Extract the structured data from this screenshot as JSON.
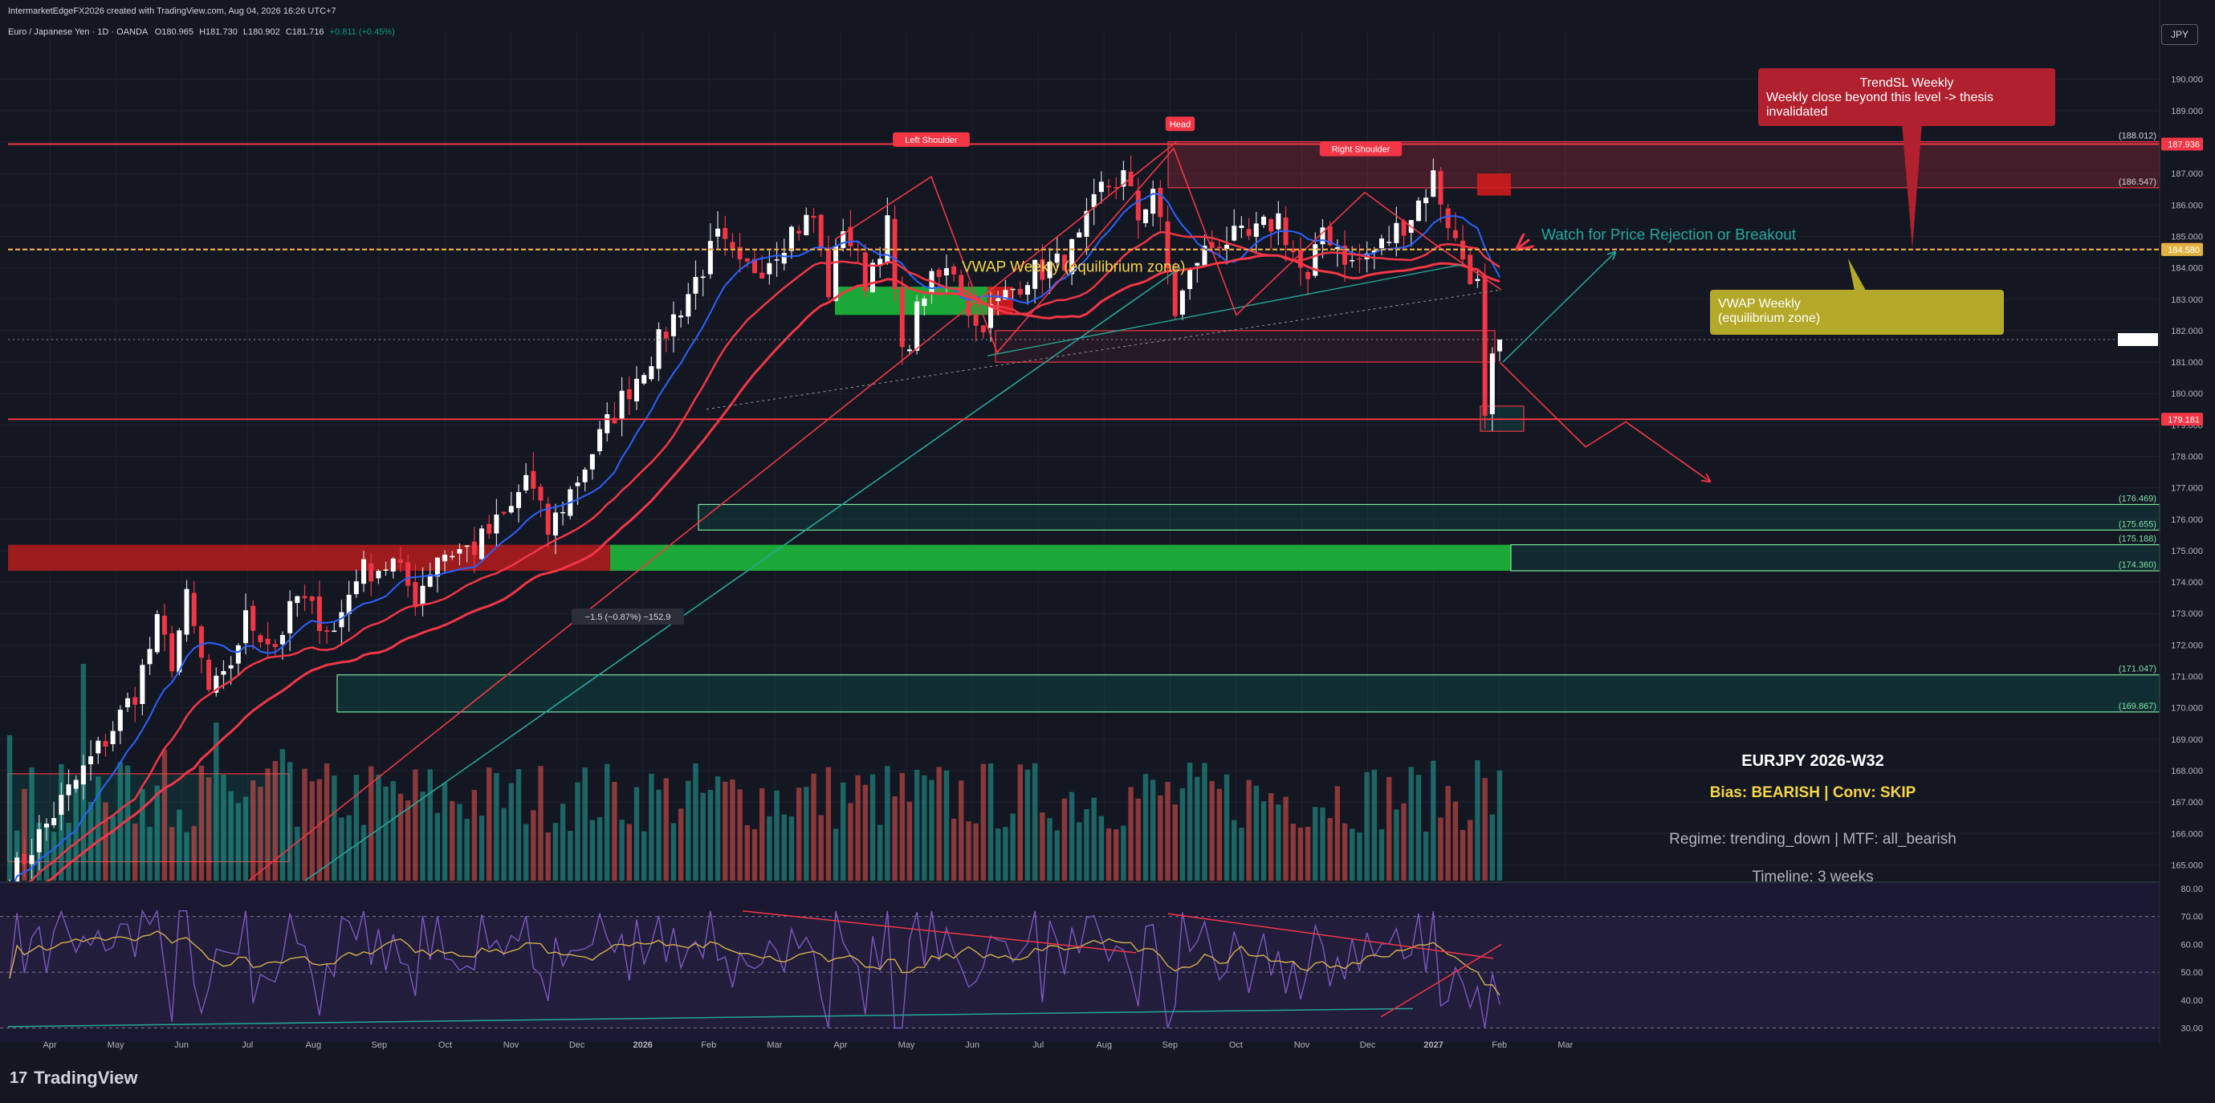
{
  "header": {
    "creator_line": "IntermarketEdgeFX2026 created with TradingView.com, Aug 04, 2026 16:26 UTC+7",
    "symbol": "Euro / Japanese Yen · 1D · OANDA",
    "ohlc": {
      "o": "O180.965",
      "h": "H181.730",
      "l": "L180.902",
      "c": "C181.716",
      "chg": "+0.811 (+0.45%)"
    }
  },
  "currency_button": "JPY",
  "brand": "TradingView",
  "colors": {
    "bg": "#131722",
    "red": "#f23645",
    "green": "#089981",
    "teal": "#26a69a",
    "blue": "#2962ff",
    "yellow": "#d4c23a"
  },
  "chart_data": [
    {
      "type": "candlestick",
      "title": "Euro / Japanese Yen · 1D · OANDA",
      "x_ticks": [
        "Apr",
        "May",
        "Jun",
        "Jul",
        "Aug",
        "Sep",
        "Oct",
        "Nov",
        "Dec",
        "2026",
        "Feb",
        "Mar",
        "Apr",
        "May",
        "Jun",
        "Jul",
        "Aug",
        "Sep",
        "Oct",
        "Nov",
        "Dec",
        "2027",
        "Feb",
        "Mar"
      ],
      "y_ticks": [
        "190.000",
        "189.000",
        "188.000",
        "187.000",
        "186.000",
        "185.000",
        "184.000",
        "183.000",
        "182.000",
        "181.000",
        "180.000",
        "179.000",
        "178.000",
        "177.000",
        "176.000",
        "175.000",
        "174.000",
        "173.000",
        "172.000",
        "171.000",
        "170.000",
        "169.000",
        "168.000",
        "167.000",
        "166.000",
        "165.000"
      ],
      "ylim": [
        164.5,
        191.5
      ],
      "price_path": [
        [
          0,
          164.5
        ],
        [
          7,
          167
        ],
        [
          13,
          169
        ],
        [
          17,
          170.5
        ],
        [
          20,
          172.6
        ],
        [
          22,
          171.5
        ],
        [
          24,
          173.4
        ],
        [
          27,
          170.5
        ],
        [
          29,
          170.8
        ],
        [
          32,
          172.8
        ],
        [
          36,
          172.0
        ],
        [
          39,
          173.5
        ],
        [
          44,
          172.4
        ],
        [
          47,
          174.3
        ],
        [
          52,
          174.6
        ],
        [
          55,
          173.5
        ],
        [
          58,
          174.9
        ],
        [
          63,
          175.1
        ],
        [
          68,
          176.3
        ],
        [
          70,
          177.4
        ],
        [
          73,
          175.6
        ],
        [
          77,
          177.3
        ],
        [
          80,
          178.6
        ],
        [
          84,
          180.2
        ],
        [
          88,
          181.6
        ],
        [
          92,
          183.2
        ],
        [
          96,
          184.9
        ],
        [
          99,
          183.9
        ],
        [
          102,
          184.1
        ],
        [
          106,
          185.2
        ],
        [
          109,
          185.6
        ],
        [
          111,
          183.3
        ],
        [
          113,
          185.4
        ],
        [
          116,
          183.6
        ],
        [
          119,
          185.3
        ],
        [
          121,
          181.1
        ],
        [
          124,
          183.3
        ],
        [
          128,
          184.0
        ],
        [
          131,
          182.1
        ],
        [
          135,
          183.1
        ],
        [
          138,
          183.8
        ],
        [
          142,
          184.1
        ],
        [
          145,
          184.8
        ],
        [
          148,
          186.5
        ],
        [
          151,
          186.9
        ],
        [
          153,
          185.6
        ],
        [
          155,
          186.6
        ],
        [
          158,
          182.6
        ],
        [
          161,
          184.3
        ],
        [
          164,
          184.9
        ],
        [
          168,
          184.9
        ],
        [
          172,
          185.6
        ],
        [
          176,
          183.4
        ],
        [
          178,
          185.3
        ],
        [
          182,
          184.1
        ],
        [
          186,
          184.7
        ],
        [
          190,
          185.7
        ],
        [
          193,
          186.9
        ],
        [
          196,
          184.8
        ],
        [
          199,
          183.4
        ],
        [
          200,
          179.0
        ],
        [
          201,
          180.9
        ],
        [
          202,
          181.7
        ]
      ],
      "candle_count": 203,
      "series": [
        {
          "name": "",
          "color": "#2962ff"
        },
        {
          "name": "",
          "color": "#f23645"
        }
      ],
      "price_labels": [
        {
          "text": "187.936",
          "value": 187.936,
          "color": "#f23645"
        },
        {
          "text": "184.590",
          "value": 184.59,
          "color": "#f23645"
        },
        {
          "text": "184.580",
          "value": 184.58,
          "color": "#e3b341"
        },
        {
          "text": "179.181",
          "value": 179.181,
          "color": "#f23645"
        }
      ],
      "level_labels": [
        {
          "text": "(188.012)",
          "value": 188.012
        },
        {
          "text": "(186.547)",
          "value": 186.547
        },
        {
          "text": "(176.469)",
          "value": 176.469
        },
        {
          "text": "(175.655)",
          "value": 175.655
        },
        {
          "text": "(175.188)",
          "value": 175.188
        },
        {
          "text": "(174.360)",
          "value": 174.36
        },
        {
          "text": "(171.047)",
          "value": 171.047
        },
        {
          "text": "(169.867)",
          "value": 169.867
        }
      ],
      "pattern_labels": [
        "Left Shoulder",
        "Head",
        "Right Shoulder"
      ],
      "measure_label": "−1.5 (−0.87%) −152.9",
      "annotations": {
        "watch": "Watch for Price Rejection or Breakout",
        "vwap_inline": "VWAP Weekly (equilibrium zone)",
        "vwap_box_line1": "VWAP Weekly",
        "vwap_box_line2": " (equilibrium zone)",
        "trendsl_title": "TrendSL Weekly",
        "trendsl_body_line1": "Weekly close beyond this level -> thesis",
        "trendsl_body_line2": "invalidated"
      },
      "info_panel": {
        "title": "EURJPY 2026-W32",
        "bias": "Bias: BEARISH | Conv: SKIP",
        "regime": "Regime: trending_down | MTF: all_bearish",
        "timeline": "Timeline: 3 weeks"
      }
    },
    {
      "type": "line",
      "series": [
        {
          "name": "",
          "color": "#7e57c2"
        },
        {
          "name": "",
          "color": "#d4b04a"
        }
      ],
      "y_ticks": [
        "80.00",
        "70.00",
        "60.00",
        "50.00",
        "40.00",
        "30.00"
      ],
      "ylim": [
        25,
        82
      ]
    }
  ]
}
